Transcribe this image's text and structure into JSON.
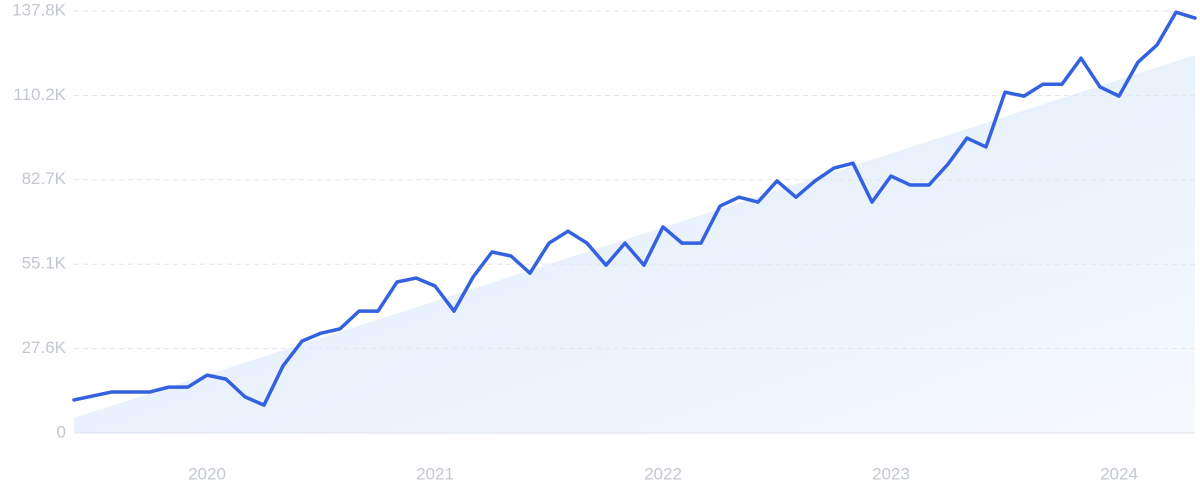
{
  "chart_data": {
    "type": "line",
    "categories": [
      null,
      null,
      null,
      null,
      null,
      null,
      null,
      "2020",
      null,
      null,
      null,
      null,
      null,
      null,
      null,
      null,
      null,
      null,
      null,
      "2021",
      null,
      null,
      null,
      null,
      null,
      null,
      null,
      null,
      null,
      null,
      null,
      "2022",
      null,
      null,
      null,
      null,
      null,
      null,
      null,
      null,
      null,
      null,
      null,
      "2023",
      null,
      null,
      null,
      null,
      null,
      null,
      null,
      null,
      null,
      null,
      null,
      "2024",
      null,
      null,
      null,
      null
    ],
    "series": [
      {
        "color": "#3361e0",
        "values": [
          10.8,
          12.1,
          13.4,
          13.4,
          13.4,
          15.0,
          15.0,
          18.9,
          17.6,
          11.8,
          9.1,
          21.9,
          30.0,
          32.6,
          34.0,
          39.8,
          39.8,
          49.3,
          50.6,
          48.0,
          39.8,
          50.9,
          59.1,
          57.8,
          52.2,
          62.0,
          65.9,
          62.0,
          54.8,
          62.0,
          54.8,
          67.3,
          62.0,
          62.0,
          74.1,
          77.0,
          75.4,
          82.3,
          77.0,
          82.3,
          86.5,
          88.1,
          75.4,
          83.9,
          81.0,
          81.0,
          87.8,
          96.3,
          93.4,
          111.3,
          110.0,
          113.9,
          113.9,
          122.4,
          113.0,
          110.0,
          121.1,
          126.7,
          137.4,
          135.5
        ]
      }
    ],
    "trend_values": [
      4.9,
      123.4
    ],
    "trend_color": "#dce9fb",
    "ylim": [
      0,
      137.8
    ],
    "yticks": [
      0,
      {
        "value": 27.6,
        "label": "27.6K"
      },
      {
        "value": 55.1,
        "label": "55.1K"
      },
      {
        "value": 82.7,
        "label": "82.7K"
      },
      {
        "value": 110.2,
        "label": "110.2K"
      },
      {
        "value": 137.8,
        "label": "137.8K"
      }
    ],
    "grid": true
  }
}
